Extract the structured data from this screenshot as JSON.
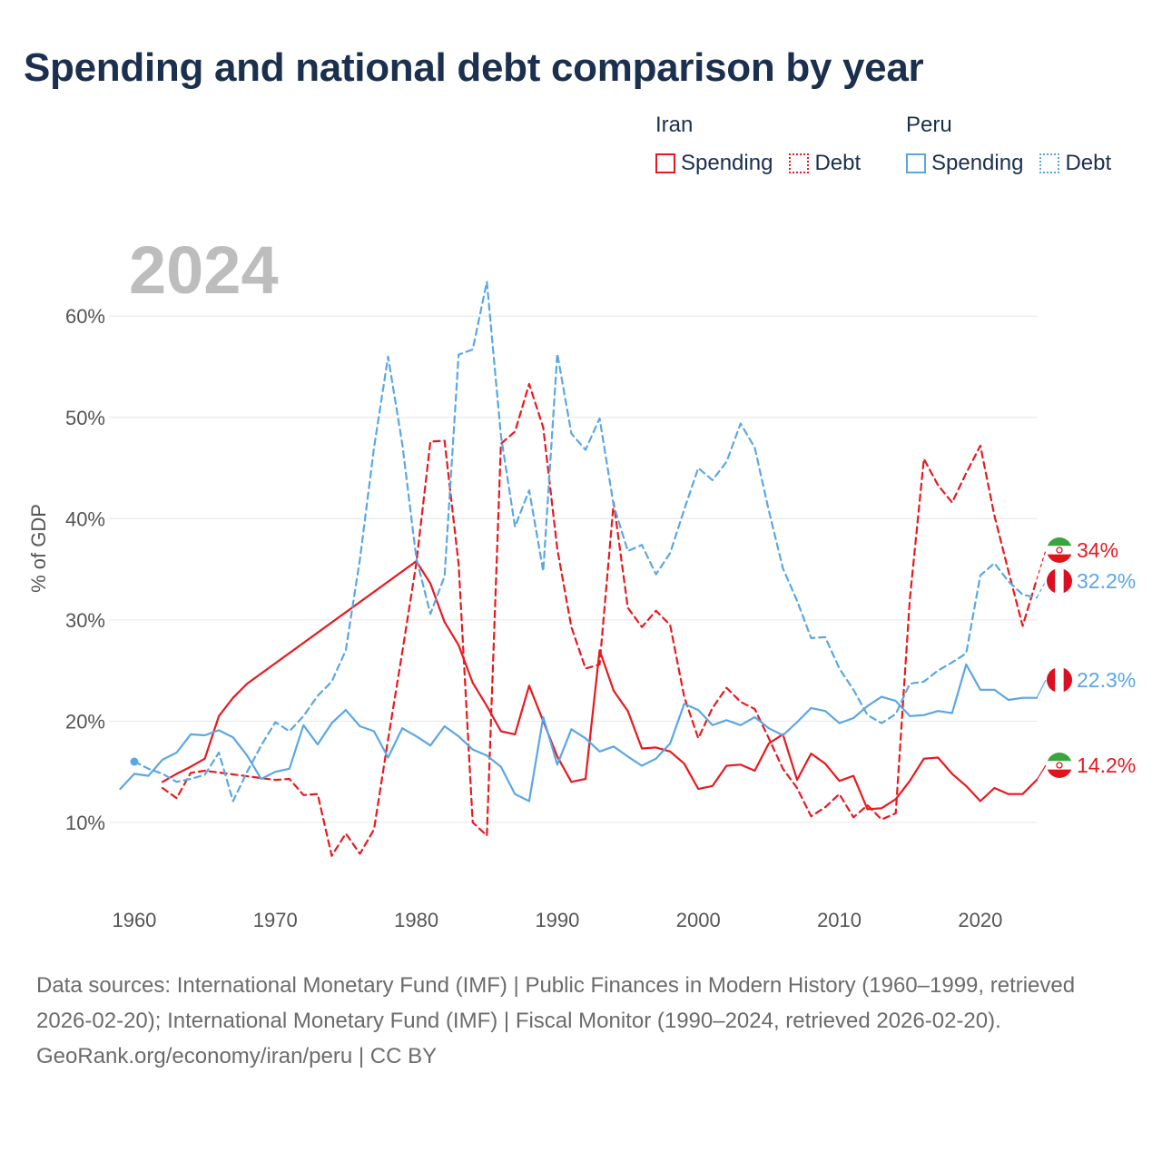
{
  "title": "Spending and national debt comparison by year",
  "legend": {
    "iran": {
      "name": "Iran",
      "spending": "Spending",
      "debt": "Debt"
    },
    "peru": {
      "name": "Peru",
      "spending": "Spending",
      "debt": "Debt"
    }
  },
  "colors": {
    "iran": "#e8191f",
    "peru": "#5aa7e4",
    "title": "#1b2f4e",
    "grid": "#e6e6e6"
  },
  "icons": {
    "iran": "iran-flag-icon",
    "peru": "peru-flag-icon"
  },
  "footer": {
    "sources": "Data sources: International Monetary Fund (IMF) | Public Finances in Modern History (1960–1999, retrieved 2026-02-20); International Monetary Fund (IMF) | Fiscal Monitor (1990–2024, retrieved 2026-02-20).",
    "credit": "GeoRank.org/economy/iran/peru | CC BY"
  },
  "chart_data": {
    "type": "line",
    "year_label": "2024",
    "ylabel": "% of GDP",
    "xlim": [
      1958.2,
      2024
    ],
    "ylim": [
      3,
      68
    ],
    "x_ticks": [
      1960,
      1970,
      1980,
      1990,
      2000,
      2010,
      2020
    ],
    "x_tick_labels": [
      "1960",
      "1970",
      "1980",
      "1990",
      "2000",
      "2010",
      "2020"
    ],
    "y_ticks": [
      10,
      20,
      30,
      40,
      50,
      60
    ],
    "y_tick_labels": [
      "10%",
      "20%",
      "30%",
      "40%",
      "50%",
      "60%"
    ],
    "end_labels": {
      "iran_debt": "34%",
      "peru_debt": "32.2%",
      "peru_spending": "22.3%",
      "iran_spending": "14.2%"
    },
    "series": [
      {
        "name": "Iran Spending",
        "country": "iran",
        "style": "solid",
        "points": [
          [
            1962,
            14.0
          ],
          [
            1963,
            14.8
          ],
          [
            1964,
            15.5
          ],
          [
            1965,
            16.3
          ],
          [
            1966,
            20.5
          ],
          [
            1967,
            22.3
          ],
          [
            1968,
            23.7
          ],
          [
            1980,
            35.8
          ],
          [
            1981,
            33.6
          ],
          [
            1982,
            29.8
          ],
          [
            1983,
            27.5
          ],
          [
            1984,
            23.8
          ],
          [
            1985,
            21.5
          ],
          [
            1986,
            19.0
          ],
          [
            1987,
            18.7
          ],
          [
            1988,
            23.5
          ],
          [
            1989,
            20.0
          ],
          [
            1990,
            16.5
          ],
          [
            1991,
            14.0
          ],
          [
            1992,
            14.3
          ],
          [
            1993,
            27.0
          ],
          [
            1994,
            23.0
          ],
          [
            1995,
            21.0
          ],
          [
            1996,
            17.3
          ],
          [
            1997,
            17.4
          ],
          [
            1998,
            17.0
          ],
          [
            1999,
            15.8
          ],
          [
            2000,
            13.3
          ],
          [
            2001,
            13.6
          ],
          [
            2002,
            15.6
          ],
          [
            2003,
            15.7
          ],
          [
            2004,
            15.1
          ],
          [
            2005,
            17.8
          ],
          [
            2006,
            18.7
          ],
          [
            2007,
            14.2
          ],
          [
            2008,
            16.8
          ],
          [
            2009,
            15.8
          ],
          [
            2010,
            14.1
          ],
          [
            2011,
            14.6
          ],
          [
            2012,
            11.3
          ],
          [
            2013,
            11.4
          ],
          [
            2014,
            12.3
          ],
          [
            2015,
            14.1
          ],
          [
            2016,
            16.3
          ],
          [
            2017,
            16.4
          ],
          [
            2018,
            14.8
          ],
          [
            2019,
            13.6
          ],
          [
            2020,
            12.1
          ],
          [
            2021,
            13.4
          ],
          [
            2022,
            12.8
          ],
          [
            2023,
            12.8
          ],
          [
            2024,
            14.2
          ]
        ]
      },
      {
        "name": "Iran Debt",
        "country": "iran",
        "style": "dashed",
        "points": [
          [
            1962,
            13.4
          ],
          [
            1963,
            12.4
          ],
          [
            1964,
            14.9
          ],
          [
            1965,
            15.1
          ],
          [
            1970,
            14.2
          ],
          [
            1971,
            14.3
          ],
          [
            1972,
            12.7
          ],
          [
            1973,
            12.8
          ],
          [
            1974,
            6.7
          ],
          [
            1975,
            8.9
          ],
          [
            1976,
            6.9
          ],
          [
            1977,
            9.3
          ],
          [
            1978,
            18.2
          ],
          [
            1979,
            26.8
          ],
          [
            1980,
            35.6
          ],
          [
            1981,
            47.6
          ],
          [
            1982,
            47.7
          ],
          [
            1983,
            35.5
          ],
          [
            1984,
            10.0
          ],
          [
            1985,
            8.7
          ],
          [
            1986,
            47.4
          ],
          [
            1987,
            48.6
          ],
          [
            1988,
            53.3
          ],
          [
            1989,
            49.0
          ],
          [
            1990,
            37.0
          ],
          [
            1991,
            29.3
          ],
          [
            1992,
            25.2
          ],
          [
            1993,
            25.6
          ],
          [
            1994,
            41.6
          ],
          [
            1995,
            31.2
          ],
          [
            1996,
            29.3
          ],
          [
            1997,
            30.9
          ],
          [
            1998,
            29.5
          ],
          [
            1999,
            22.4
          ],
          [
            2000,
            18.3
          ],
          [
            2001,
            21.3
          ],
          [
            2002,
            23.3
          ],
          [
            2003,
            21.9
          ],
          [
            2004,
            21.2
          ],
          [
            2005,
            18.3
          ],
          [
            2006,
            15.3
          ],
          [
            2007,
            13.4
          ],
          [
            2008,
            10.6
          ],
          [
            2009,
            11.5
          ],
          [
            2010,
            12.8
          ],
          [
            2011,
            10.5
          ],
          [
            2012,
            11.7
          ],
          [
            2013,
            10.3
          ],
          [
            2014,
            10.9
          ],
          [
            2015,
            32.0
          ],
          [
            2016,
            45.9
          ],
          [
            2017,
            43.3
          ],
          [
            2018,
            41.6
          ],
          [
            2019,
            44.5
          ],
          [
            2020,
            47.2
          ],
          [
            2021,
            40.3
          ],
          [
            2022,
            34.8
          ],
          [
            2023,
            29.4
          ],
          [
            2024,
            34.0
          ]
        ]
      },
      {
        "name": "Peru Spending",
        "country": "peru",
        "style": "solid",
        "points": [
          [
            1959,
            13.3
          ],
          [
            1960,
            14.8
          ],
          [
            1961,
            14.6
          ],
          [
            1962,
            16.2
          ],
          [
            1963,
            16.9
          ],
          [
            1964,
            18.7
          ],
          [
            1965,
            18.6
          ],
          [
            1966,
            19.1
          ],
          [
            1967,
            18.4
          ],
          [
            1968,
            16.6
          ],
          [
            1969,
            14.3
          ],
          [
            1970,
            15.0
          ],
          [
            1971,
            15.3
          ],
          [
            1972,
            19.6
          ],
          [
            1973,
            17.7
          ],
          [
            1974,
            19.8
          ],
          [
            1975,
            21.1
          ],
          [
            1976,
            19.5
          ],
          [
            1977,
            19.0
          ],
          [
            1978,
            16.4
          ],
          [
            1979,
            19.3
          ],
          [
            1980,
            18.5
          ],
          [
            1981,
            17.6
          ],
          [
            1982,
            19.5
          ],
          [
            1983,
            18.5
          ],
          [
            1984,
            17.2
          ],
          [
            1985,
            16.6
          ],
          [
            1986,
            15.5
          ],
          [
            1987,
            12.8
          ],
          [
            1988,
            12.1
          ],
          [
            1989,
            20.4
          ],
          [
            1990,
            15.7
          ],
          [
            1991,
            19.2
          ],
          [
            1992,
            18.3
          ],
          [
            1993,
            17.0
          ],
          [
            1994,
            17.5
          ],
          [
            1995,
            16.5
          ],
          [
            1996,
            15.6
          ],
          [
            1997,
            16.3
          ],
          [
            1998,
            17.8
          ],
          [
            1999,
            21.7
          ],
          [
            2000,
            21.1
          ],
          [
            2001,
            19.6
          ],
          [
            2002,
            20.1
          ],
          [
            2003,
            19.6
          ],
          [
            2004,
            20.4
          ],
          [
            2005,
            19.3
          ],
          [
            2006,
            18.6
          ],
          [
            2007,
            19.9
          ],
          [
            2008,
            21.3
          ],
          [
            2009,
            21.0
          ],
          [
            2010,
            19.8
          ],
          [
            2011,
            20.3
          ],
          [
            2012,
            21.5
          ],
          [
            2013,
            22.4
          ],
          [
            2014,
            22.0
          ],
          [
            2015,
            20.5
          ],
          [
            2016,
            20.6
          ],
          [
            2017,
            21.0
          ],
          [
            2018,
            20.8
          ],
          [
            2019,
            25.6
          ],
          [
            2020,
            23.1
          ],
          [
            2021,
            23.1
          ],
          [
            2022,
            22.1
          ],
          [
            2023,
            22.3
          ],
          [
            2024,
            22.3
          ]
        ]
      },
      {
        "name": "Peru Debt",
        "country": "peru",
        "style": "dashed",
        "points": [
          [
            1960,
            16.0
          ],
          [
            1961,
            15.3
          ],
          [
            1962,
            14.8
          ],
          [
            1963,
            14.0
          ],
          [
            1964,
            14.3
          ],
          [
            1965,
            14.7
          ],
          [
            1966,
            16.9
          ],
          [
            1967,
            12.1
          ],
          [
            1968,
            15.0
          ],
          [
            1969,
            17.6
          ],
          [
            1970,
            19.9
          ],
          [
            1971,
            19.0
          ],
          [
            1972,
            20.5
          ],
          [
            1973,
            22.5
          ],
          [
            1974,
            23.9
          ],
          [
            1975,
            27.0
          ],
          [
            1976,
            36.0
          ],
          [
            1977,
            47.0
          ],
          [
            1978,
            56.0
          ],
          [
            1979,
            47.4
          ],
          [
            1980,
            36.1
          ],
          [
            1981,
            30.6
          ],
          [
            1982,
            34.3
          ],
          [
            1983,
            56.2
          ],
          [
            1984,
            56.7
          ],
          [
            1985,
            63.4
          ],
          [
            1986,
            48.2
          ],
          [
            1987,
            39.2
          ],
          [
            1988,
            42.8
          ],
          [
            1989,
            34.8
          ],
          [
            1990,
            56.3
          ],
          [
            1991,
            48.4
          ],
          [
            1992,
            46.8
          ],
          [
            1993,
            49.9
          ],
          [
            1994,
            41.3
          ],
          [
            1995,
            36.8
          ],
          [
            1996,
            37.4
          ],
          [
            1997,
            34.5
          ],
          [
            1998,
            36.6
          ],
          [
            1999,
            40.9
          ],
          [
            2000,
            45.0
          ],
          [
            2001,
            43.8
          ],
          [
            2002,
            45.6
          ],
          [
            2003,
            49.4
          ],
          [
            2004,
            47.0
          ],
          [
            2005,
            40.8
          ],
          [
            2006,
            35.1
          ],
          [
            2007,
            31.9
          ],
          [
            2008,
            28.2
          ],
          [
            2009,
            28.3
          ],
          [
            2010,
            25.2
          ],
          [
            2011,
            23.1
          ],
          [
            2012,
            20.6
          ],
          [
            2013,
            19.8
          ],
          [
            2014,
            20.7
          ],
          [
            2015,
            23.7
          ],
          [
            2016,
            23.9
          ],
          [
            2017,
            25.0
          ],
          [
            2018,
            25.8
          ],
          [
            2019,
            26.7
          ],
          [
            2020,
            34.4
          ],
          [
            2021,
            35.6
          ],
          [
            2022,
            33.8
          ],
          [
            2023,
            32.5
          ],
          [
            2024,
            32.2
          ]
        ]
      }
    ]
  }
}
